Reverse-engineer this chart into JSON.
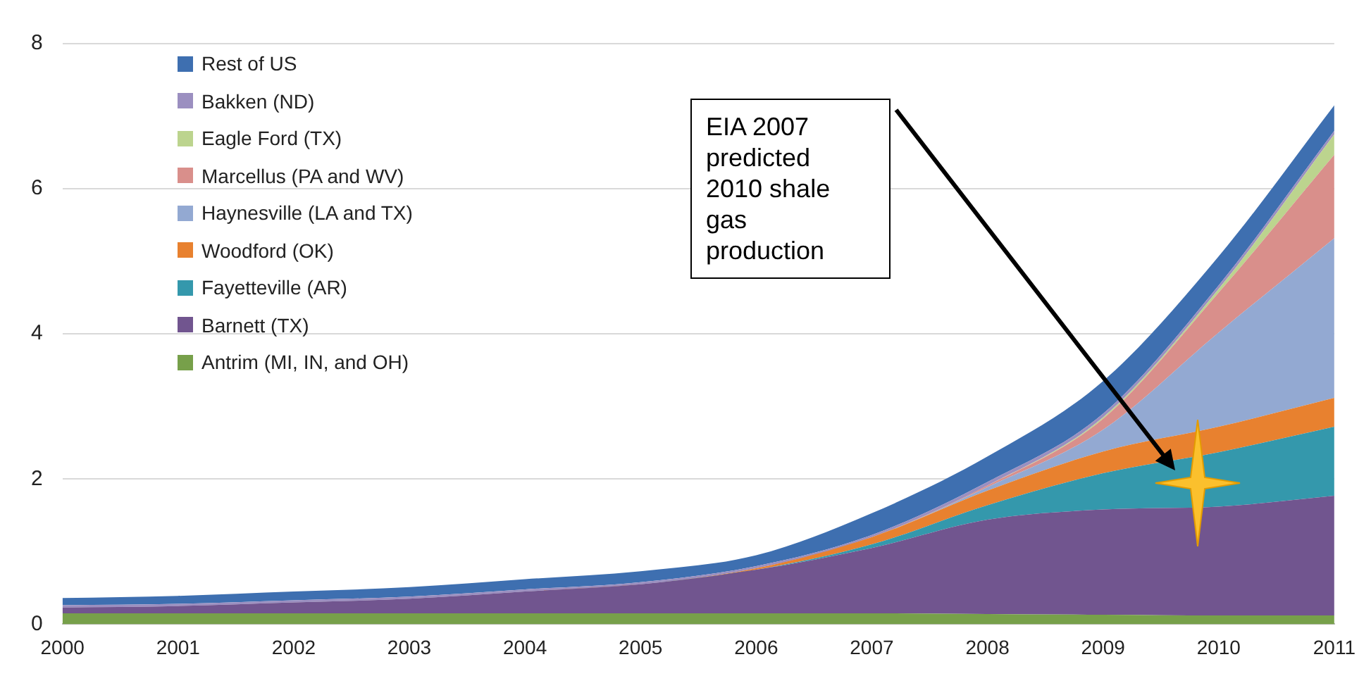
{
  "chart_data": {
    "type": "area",
    "stacked": true,
    "categories": [
      "2000",
      "2001",
      "2002",
      "2003",
      "2004",
      "2005",
      "2006",
      "2007",
      "2008",
      "2009",
      "2010",
      "2011"
    ],
    "series": [
      {
        "name": "Antrim (MI, IN, and OH)",
        "color": "#77a04a",
        "values": [
          0.15,
          0.15,
          0.15,
          0.15,
          0.15,
          0.15,
          0.15,
          0.15,
          0.14,
          0.13,
          0.12,
          0.12
        ]
      },
      {
        "name": "Barnett (TX)",
        "color": "#71558f",
        "values": [
          0.08,
          0.1,
          0.15,
          0.2,
          0.3,
          0.4,
          0.6,
          0.9,
          1.3,
          1.45,
          1.5,
          1.65
        ]
      },
      {
        "name": "Fayetteville (AR)",
        "color": "#3498ac",
        "values": [
          0,
          0,
          0,
          0,
          0,
          0,
          0,
          0.05,
          0.2,
          0.5,
          0.75,
          0.95
        ]
      },
      {
        "name": "Woodford (OK)",
        "color": "#e8812f",
        "values": [
          0,
          0,
          0,
          0,
          0,
          0,
          0.02,
          0.1,
          0.2,
          0.3,
          0.35,
          0.4
        ]
      },
      {
        "name": "Haynesville (LA and TX)",
        "color": "#93a9d2",
        "values": [
          0,
          0,
          0,
          0,
          0,
          0,
          0,
          0,
          0.05,
          0.3,
          1.3,
          2.2
        ]
      },
      {
        "name": "Marcellus (PA and WV)",
        "color": "#d98f8b",
        "values": [
          0,
          0,
          0,
          0,
          0,
          0,
          0,
          0,
          0.02,
          0.15,
          0.55,
          1.15
        ]
      },
      {
        "name": "Eagle Ford (TX)",
        "color": "#bcd48e",
        "values": [
          0,
          0,
          0,
          0,
          0,
          0,
          0,
          0,
          0,
          0.02,
          0.05,
          0.28
        ]
      },
      {
        "name": "Bakken (ND)",
        "color": "#9b8fc0",
        "values": [
          0.03,
          0.03,
          0.03,
          0.03,
          0.03,
          0.03,
          0.03,
          0.03,
          0.05,
          0.05,
          0.05,
          0.05
        ]
      },
      {
        "name": "Rest of US",
        "color": "#3e6fb0",
        "values": [
          0.1,
          0.11,
          0.12,
          0.13,
          0.14,
          0.15,
          0.15,
          0.3,
          0.35,
          0.45,
          0.4,
          0.35
        ]
      }
    ],
    "ylim": [
      0,
      8
    ],
    "yticks": [
      0,
      2,
      4,
      6,
      8
    ],
    "grid": "y",
    "legend": "top left",
    "annotations": [
      "EIA 2007 predicted 2010 shale gas production"
    ]
  }
}
